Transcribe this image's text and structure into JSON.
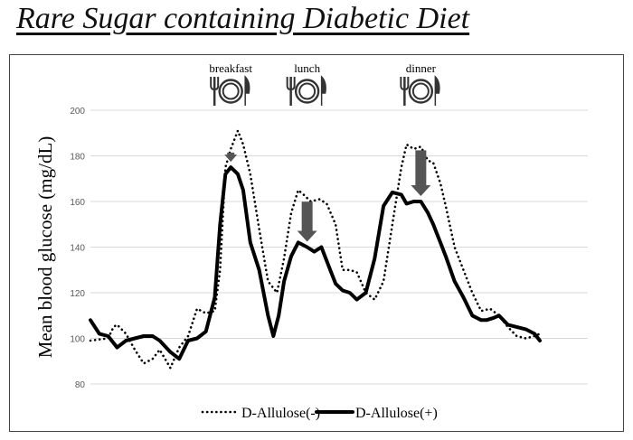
{
  "title": "Rare Sugar containing Diabetic Diet",
  "meals": [
    {
      "label": "breakfast",
      "icon": "plate-fork-knife-icon",
      "hour": 7.9
    },
    {
      "label": "lunch",
      "icon": "plate-fork-knife-icon",
      "hour": 12.2
    },
    {
      "label": "dinner",
      "icon": "plate-fork-knife-icon",
      "hour": 18.6
    }
  ],
  "chart_data": {
    "type": "line",
    "ylabel": "Mean blood glucose (mg/dL)",
    "xlabel": "",
    "ylim": [
      80,
      200
    ],
    "yticks": [
      80,
      100,
      120,
      140,
      160,
      180,
      200
    ],
    "xlim": [
      0,
      28
    ],
    "grid": true,
    "legend_position": "bottom",
    "arrow_color": "#555555",
    "series": [
      {
        "name": "D-Allulose(-)",
        "style": "dotted",
        "color": "#000000",
        "x": [
          0,
          1,
          1.3,
          1.5,
          2,
          2.5,
          3,
          3.5,
          3.9,
          4.5,
          5,
          5.5,
          6,
          6.5,
          7,
          7.3,
          7.6,
          7.9,
          8.3,
          8.6,
          9,
          9.5,
          10,
          10.5,
          10.9,
          11.3,
          11.7,
          12,
          12.4,
          12.9,
          13.3,
          13.8,
          14.2,
          14.6,
          15,
          15.5,
          16,
          16.5,
          17,
          17.5,
          17.8,
          18.2,
          18.6,
          19,
          19.3,
          19.7,
          20,
          20.5,
          21,
          21.5,
          22,
          22.5,
          23,
          23.5,
          24,
          24.5,
          25,
          25.3
        ],
        "y": [
          99,
          100,
          105,
          106,
          102,
          95,
          89,
          91,
          95,
          87,
          96,
          101,
          113,
          111,
          112,
          130,
          175,
          183,
          191,
          185,
          172,
          148,
          125,
          120,
          135,
          155,
          165,
          163,
          160,
          161,
          159,
          150,
          130,
          130,
          129,
          120,
          117,
          125,
          150,
          175,
          185,
          183,
          184,
          178,
          177,
          168,
          158,
          140,
          130,
          120,
          112,
          113,
          110,
          105,
          101,
          100,
          101,
          102
        ]
      },
      {
        "name": "D-Allulose(+)",
        "style": "solid",
        "color": "#000000",
        "x": [
          0,
          0.5,
          1,
          1.5,
          2,
          2.5,
          3,
          3.5,
          3.9,
          4.5,
          5,
          5.5,
          6,
          6.5,
          7,
          7.3,
          7.6,
          7.9,
          8.3,
          8.6,
          9,
          9.5,
          10,
          10.3,
          10.6,
          10.9,
          11.3,
          11.7,
          12.2,
          12.6,
          13,
          13.4,
          13.8,
          14.2,
          14.6,
          15,
          15.5,
          16,
          16.5,
          17,
          17.5,
          17.8,
          18.2,
          18.6,
          19,
          19.3,
          19.7,
          20,
          20.5,
          21,
          21.5,
          22,
          22.3,
          22.7,
          23,
          23.5,
          24,
          24.5,
          25,
          25.3
        ],
        "y": [
          108,
          102,
          101,
          96,
          99,
          100,
          101,
          101,
          99,
          94,
          91,
          99,
          100,
          103,
          118,
          150,
          172,
          175,
          172,
          165,
          142,
          130,
          110,
          101,
          110,
          125,
          136,
          142,
          140,
          138,
          140,
          132,
          124,
          121,
          120,
          117,
          120,
          135,
          158,
          164,
          163,
          159,
          160,
          160,
          155,
          150,
          142,
          136,
          125,
          118,
          110,
          108,
          108,
          109,
          110,
          106,
          105,
          104,
          102,
          99
        ]
      }
    ]
  }
}
